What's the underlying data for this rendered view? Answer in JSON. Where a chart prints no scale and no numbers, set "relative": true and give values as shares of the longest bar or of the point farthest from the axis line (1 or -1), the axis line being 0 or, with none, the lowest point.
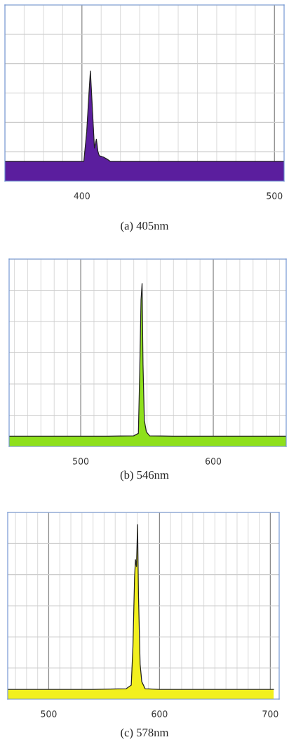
{
  "chart_data": [
    {
      "type": "area",
      "relative": true,
      "xlim": [
        360,
        505
      ],
      "xticks": [
        400,
        500
      ],
      "tick_labels": "x",
      "grid": true,
      "annotations": [
        "(a) 405nm"
      ],
      "series": [
        {
          "color": "#5b1e9e",
          "x": [
            360,
            380,
            395,
            401,
            402.5,
            403.5,
            404.4,
            405.3,
            406.5,
            407.5,
            408.3,
            409,
            411,
            413,
            414.7,
            430,
            450,
            470,
            490,
            505
          ],
          "values": [
            0.18,
            0.18,
            0.18,
            0.18,
            0.45,
            0.75,
            1.0,
            0.7,
            0.3,
            0.38,
            0.27,
            0.23,
            0.22,
            0.2,
            0.18,
            0.18,
            0.18,
            0.18,
            0.18,
            0.18
          ]
        }
      ]
    },
    {
      "type": "area",
      "relative": true,
      "xlim": [
        446,
        655
      ],
      "xticks": [
        500,
        600
      ],
      "tick_labels": "x",
      "grid": true,
      "annotations": [
        "(b) 546nm"
      ],
      "series": [
        {
          "color": "#8ee01c",
          "x": [
            446,
            480,
            520,
            540,
            543.5,
            544.5,
            545.5,
            546.3,
            547,
            548,
            549.5,
            552,
            570,
            600,
            630,
            655
          ],
          "values": [
            0.063,
            0.063,
            0.063,
            0.065,
            0.08,
            0.45,
            0.9,
            1.0,
            0.5,
            0.16,
            0.09,
            0.065,
            0.063,
            0.063,
            0.063,
            0.063
          ]
        }
      ]
    },
    {
      "type": "area",
      "relative": true,
      "xlim": [
        463,
        708
      ],
      "xticks": [
        500,
        600,
        700
      ],
      "tick_labels": "x",
      "grid": true,
      "annotations": [
        "(c) 578nm"
      ],
      "series": [
        {
          "color": "#f2f01e",
          "x": [
            463,
            500,
            540,
            570,
            574.5,
            576,
            577.5,
            578.3,
            579.2,
            580.2,
            581,
            582.5,
            584,
            587,
            600,
            640,
            680,
            703
          ],
          "values": [
            0.056,
            0.056,
            0.056,
            0.06,
            0.08,
            0.3,
            0.7,
            0.8,
            0.76,
            1.0,
            0.6,
            0.2,
            0.1,
            0.06,
            0.056,
            0.056,
            0.056,
            0.056
          ]
        }
      ]
    }
  ]
}
